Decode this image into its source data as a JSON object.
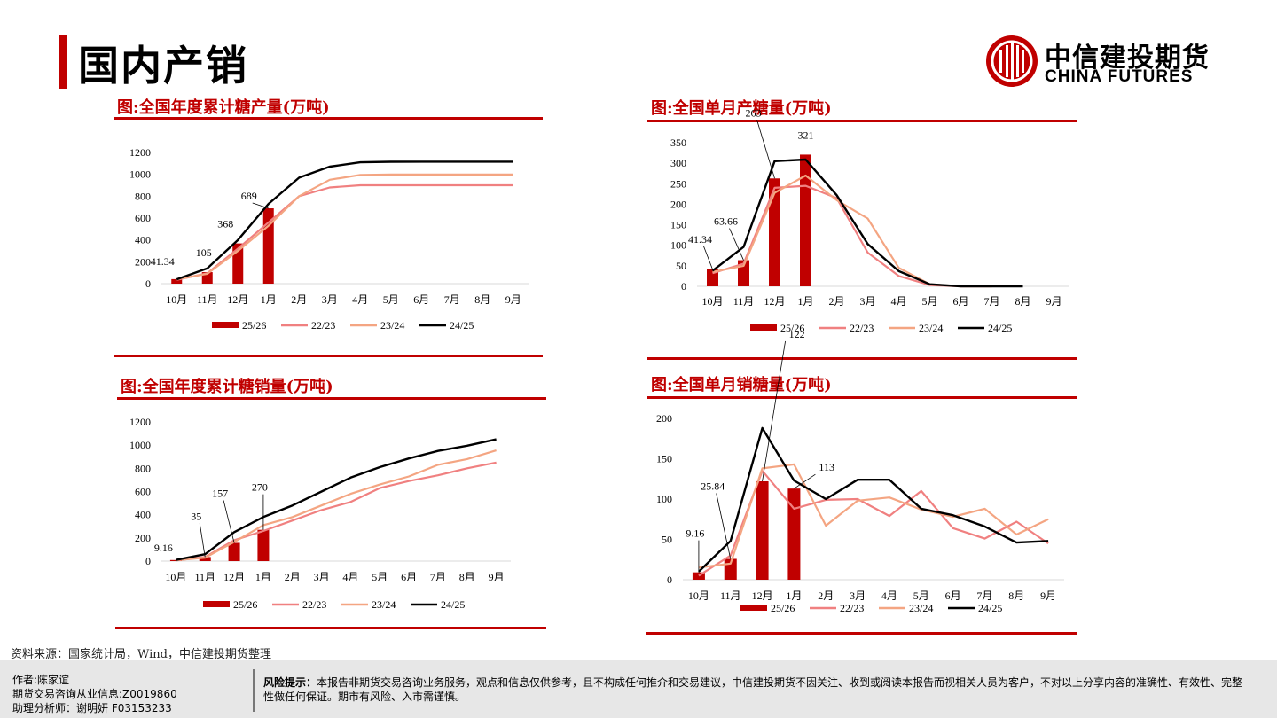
{
  "page": {
    "title": "国内产销"
  },
  "logo": {
    "cn": "中信建投期货",
    "en": "CHINA FUTURES"
  },
  "source": "资料来源：国家统计局，Wind，中信建投期货整理",
  "footer": {
    "author": "作者:陈家谊",
    "license": "期货交易咨询从业信息:Z0019860",
    "assistant": "助理分析师：谢明妍 F03153233",
    "risk_label": "风险提示：",
    "risk_text": "本报告非期货交易咨询业务服务，观点和信息仅供参考，且不构成任何推介和交易建议，中信建投期货不因关注、收到或阅读本报告而视相关人员为客户，不对以上分享内容的准确性、有效性、完整性做任何保证。期市有风险、入市需谨慎。"
  },
  "colors": {
    "accent": "#c00000",
    "s2223": "#f08080",
    "s2324": "#f4a582",
    "s2425": "#000000"
  },
  "chart_data": [
    {
      "id": "cum-prod",
      "type": "bar",
      "title": "图:全国年度累计糖产量(万吨)",
      "categories": [
        "10月",
        "11月",
        "12月",
        "1月",
        "2月",
        "3月",
        "4月",
        "5月",
        "6月",
        "7月",
        "8月",
        "9月"
      ],
      "ylim": [
        0,
        1200
      ],
      "yticks": [
        "0",
        "200",
        "400",
        "600",
        "800",
        "1000",
        "1200"
      ],
      "bar_series": {
        "name": "25/26",
        "values": [
          41.34,
          105,
          368,
          689
        ]
      },
      "data_labels": [
        "41.34",
        "105",
        "368",
        "689"
      ],
      "line_series": [
        {
          "name": "22/23",
          "values": [
            35,
            95,
            320,
            560,
            800,
            880,
            900,
            900,
            900,
            900,
            900,
            900
          ]
        },
        {
          "name": "23/24",
          "values": [
            40,
            90,
            300,
            530,
            800,
            950,
            995,
            998,
            998,
            998,
            998,
            998
          ]
        },
        {
          "name": "24/25",
          "values": [
            40,
            140,
            400,
            730,
            970,
            1070,
            1110,
            1115,
            1116,
            1116,
            1116,
            1116
          ]
        }
      ]
    },
    {
      "id": "mon-prod",
      "type": "bar",
      "title": "图:全国单月产糖量(万吨)",
      "categories": [
        "10月",
        "11月",
        "12月",
        "1月",
        "2月",
        "3月",
        "4月",
        "5月",
        "6月",
        "7月",
        "8月",
        "9月"
      ],
      "ylim": [
        0,
        350
      ],
      "yticks": [
        "0",
        "50",
        "100",
        "150",
        "200",
        "250",
        "300",
        "350"
      ],
      "bar_series": {
        "name": "25/26",
        "values": [
          41.34,
          63.66,
          263,
          321
        ]
      },
      "data_labels": [
        "41.34",
        "63.66",
        "263",
        "321"
      ],
      "line_series": [
        {
          "name": "22/23",
          "values": [
            32,
            55,
            240,
            245,
            215,
            82,
            25,
            3,
            0,
            0,
            null,
            null
          ]
        },
        {
          "name": "23/24",
          "values": [
            35,
            50,
            228,
            270,
            210,
            165,
            45,
            5,
            0,
            0,
            null,
            null
          ]
        },
        {
          "name": "24/25",
          "values": [
            38,
            96,
            305,
            309,
            222,
            103,
            37,
            5,
            0,
            0,
            0,
            null
          ]
        }
      ]
    },
    {
      "id": "cum-sales",
      "type": "bar",
      "title": "图:全国年度累计糖销量(万吨)",
      "categories": [
        "10月",
        "11月",
        "12月",
        "1月",
        "2月",
        "3月",
        "4月",
        "5月",
        "6月",
        "7月",
        "8月",
        "9月"
      ],
      "ylim": [
        0,
        1200
      ],
      "yticks": [
        "0",
        "200",
        "400",
        "600",
        "800",
        "1000",
        "1200"
      ],
      "bar_series": {
        "name": "25/26",
        "values": [
          9.16,
          35,
          157,
          270
        ]
      },
      "data_labels": [
        "9.16",
        "35",
        "157",
        "270"
      ],
      "line_series": [
        {
          "name": "22/23",
          "values": [
            5,
            35,
            180,
            260,
            350,
            440,
            510,
            630,
            690,
            740,
            800,
            850
          ]
        },
        {
          "name": "23/24",
          "values": [
            8,
            30,
            165,
            310,
            380,
            480,
            580,
            660,
            730,
            830,
            880,
            955
          ]
        },
        {
          "name": "24/25",
          "values": [
            10,
            60,
            250,
            380,
            480,
            600,
            720,
            810,
            885,
            950,
            995,
            1050
          ]
        }
      ]
    },
    {
      "id": "mon-sales",
      "type": "bar",
      "title": "图:全国单月销糖量(万吨)",
      "categories": [
        "10月",
        "11月",
        "12月",
        "1月",
        "2月",
        "3月",
        "4月",
        "5月",
        "6月",
        "7月",
        "8月",
        "9月"
      ],
      "ylim": [
        0,
        200
      ],
      "yticks": [
        "0",
        "50",
        "100",
        "150",
        "200"
      ],
      "bar_series": {
        "name": "25/26",
        "values": [
          9.16,
          25.84,
          122,
          113
        ]
      },
      "data_labels": [
        "9.16",
        "25.84",
        "122",
        "113"
      ],
      "line_series": [
        {
          "name": "22/23",
          "values": [
            5,
            30,
            135,
            88,
            99,
            100,
            79,
            110,
            64,
            51,
            72,
            45
          ]
        },
        {
          "name": "23/24",
          "values": [
            15,
            20,
            138,
            143,
            67,
            98,
            102,
            87,
            78,
            88,
            56,
            75
          ]
        },
        {
          "name": "24/25",
          "values": [
            10,
            48,
            188,
            123,
            100,
            124,
            124,
            88,
            80,
            66,
            46,
            48
          ]
        }
      ]
    }
  ]
}
